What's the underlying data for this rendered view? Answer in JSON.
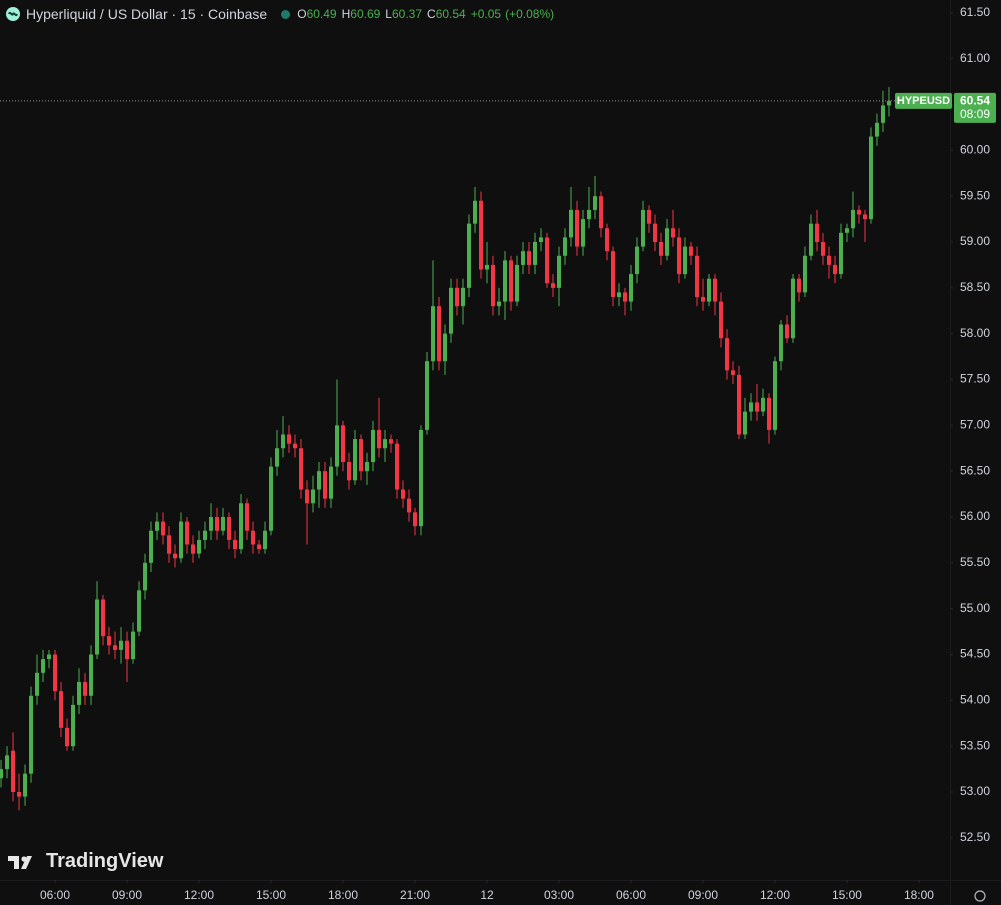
{
  "header": {
    "title": "Hyperliquid / US Dollar · 15 · Coinbase",
    "open_label": "O",
    "high_label": "H",
    "low_label": "L",
    "close_label": "C",
    "change": "+0.05",
    "change_pct": "(+0.08%)",
    "logo": "TradingView"
  },
  "chart_data": {
    "type": "candlestick",
    "symbol_label": "HYPEUSD",
    "countdown": "08:09",
    "up_color": "#4caf50",
    "down_color": "#f23645",
    "grid": false,
    "open": [
      53.15,
      53.25,
      53.45,
      53.0,
      52.95,
      53.2,
      54.05,
      54.3,
      54.45,
      54.5,
      54.1,
      53.7,
      53.5,
      53.95,
      54.2,
      54.05,
      54.5,
      55.1,
      54.7,
      54.6,
      54.55,
      54.65,
      54.45,
      54.75,
      55.2,
      55.5,
      55.85,
      55.95,
      55.8,
      55.6,
      55.55,
      55.95,
      55.7,
      55.6,
      55.75,
      55.85,
      56.0,
      55.85,
      56.0,
      55.75,
      55.65,
      56.15,
      55.85,
      55.7,
      55.65,
      55.85,
      56.55,
      56.75,
      56.9,
      56.8,
      56.75,
      56.3,
      56.15,
      56.3,
      56.5,
      56.2,
      56.55,
      57.0,
      56.6,
      56.4,
      56.85,
      56.5,
      56.6,
      56.95,
      56.75,
      56.85,
      56.8,
      56.3,
      56.2,
      56.05,
      55.9,
      56.95,
      57.7,
      58.3,
      57.7,
      58.0,
      58.5,
      58.3,
      58.5,
      59.2,
      59.45,
      58.7,
      58.75,
      58.3,
      58.35,
      58.8,
      58.35,
      58.75,
      58.9,
      58.75,
      59.0,
      59.05,
      58.55,
      58.5,
      58.85,
      59.05,
      59.35,
      58.95,
      59.25,
      59.35,
      59.5,
      59.15,
      58.9,
      58.4,
      58.45,
      58.35,
      58.65,
      58.95,
      59.35,
      59.2,
      59.0,
      58.85,
      59.15,
      59.05,
      58.65,
      58.95,
      58.85,
      58.4,
      58.35,
      58.6,
      58.35,
      57.95,
      57.6,
      57.55,
      56.9,
      57.15,
      57.25,
      57.15,
      57.3,
      56.95,
      57.7,
      58.1,
      57.95,
      58.6,
      58.45,
      58.85,
      59.2,
      59.0,
      58.85,
      58.75,
      58.65,
      59.1,
      59.15,
      59.35,
      59.3,
      59.25,
      60.15,
      60.3,
      60.49
    ],
    "high": [
      53.35,
      53.5,
      53.65,
      53.2,
      53.3,
      54.15,
      54.5,
      54.55,
      54.55,
      54.55,
      54.2,
      53.8,
      54.05,
      54.35,
      54.3,
      54.6,
      55.3,
      55.15,
      54.8,
      54.75,
      54.8,
      54.75,
      54.85,
      55.3,
      55.6,
      55.95,
      56.05,
      56.05,
      55.9,
      55.7,
      56.05,
      56.0,
      55.8,
      55.85,
      55.95,
      56.15,
      56.1,
      56.1,
      56.05,
      55.85,
      56.25,
      56.2,
      55.95,
      55.75,
      55.95,
      56.65,
      56.95,
      57.1,
      57.0,
      56.9,
      56.85,
      56.4,
      56.45,
      56.6,
      56.6,
      56.65,
      57.5,
      57.05,
      56.7,
      56.95,
      56.9,
      56.7,
      57.05,
      57.3,
      56.95,
      56.9,
      56.85,
      56.4,
      56.3,
      56.1,
      57.0,
      57.8,
      58.8,
      58.4,
      58.1,
      58.6,
      58.6,
      58.6,
      59.3,
      59.6,
      59.55,
      59.0,
      58.85,
      58.5,
      58.9,
      58.85,
      58.85,
      59.0,
      59.0,
      59.1,
      59.15,
      59.1,
      58.65,
      58.95,
      59.15,
      59.6,
      59.45,
      59.35,
      59.6,
      59.72,
      59.55,
      59.2,
      58.95,
      58.55,
      58.5,
      58.75,
      59.05,
      59.45,
      59.4,
      59.3,
      59.1,
      59.25,
      59.35,
      59.15,
      59.05,
      59.0,
      58.95,
      58.6,
      58.65,
      58.65,
      58.45,
      58.05,
      57.7,
      57.65,
      57.3,
      57.35,
      57.45,
      57.4,
      57.35,
      57.75,
      58.15,
      58.2,
      58.65,
      58.65,
      58.95,
      59.3,
      59.35,
      59.1,
      58.95,
      58.85,
      59.2,
      59.2,
      59.55,
      59.4,
      59.35,
      60.25,
      60.4,
      60.65,
      60.69
    ],
    "low": [
      53.05,
      53.15,
      52.9,
      52.8,
      52.85,
      53.1,
      53.95,
      54.2,
      54.35,
      54.0,
      53.6,
      53.45,
      53.45,
      53.85,
      53.95,
      53.95,
      54.45,
      54.6,
      54.5,
      54.45,
      54.4,
      54.2,
      54.4,
      54.7,
      55.1,
      55.4,
      55.75,
      55.7,
      55.5,
      55.45,
      55.5,
      55.6,
      55.5,
      55.55,
      55.65,
      55.75,
      55.75,
      55.8,
      55.65,
      55.55,
      55.6,
      55.75,
      55.6,
      55.6,
      55.6,
      55.8,
      56.45,
      56.65,
      56.7,
      56.65,
      56.2,
      55.7,
      56.05,
      56.1,
      56.1,
      56.1,
      56.45,
      56.5,
      56.3,
      56.35,
      56.4,
      56.35,
      56.5,
      56.65,
      56.6,
      56.7,
      56.2,
      56.1,
      55.95,
      55.8,
      55.8,
      56.9,
      57.6,
      57.6,
      57.55,
      57.9,
      58.2,
      58.1,
      58.4,
      59.1,
      58.6,
      58.55,
      58.2,
      58.2,
      58.15,
      58.25,
      58.3,
      58.65,
      58.65,
      58.65,
      58.9,
      58.5,
      58.4,
      58.3,
      58.75,
      58.95,
      58.85,
      58.85,
      59.15,
      59.25,
      59.05,
      58.8,
      58.3,
      58.3,
      58.2,
      58.25,
      58.55,
      58.9,
      59.1,
      58.9,
      58.75,
      58.8,
      58.95,
      58.55,
      58.6,
      58.75,
      58.3,
      58.25,
      58.3,
      58.2,
      57.85,
      57.5,
      57.45,
      56.85,
      56.85,
      57.05,
      57.05,
      57.1,
      56.8,
      56.9,
      57.6,
      57.9,
      57.9,
      58.35,
      58.4,
      58.8,
      58.9,
      58.75,
      58.6,
      58.55,
      58.6,
      59.0,
      59.05,
      59.2,
      59.0,
      59.2,
      60.05,
      60.2,
      60.37
    ],
    "close": [
      53.25,
      53.4,
      53.0,
      52.95,
      53.2,
      54.05,
      54.3,
      54.45,
      54.5,
      54.1,
      53.7,
      53.5,
      53.95,
      54.2,
      54.05,
      54.5,
      55.1,
      54.7,
      54.6,
      54.55,
      54.65,
      54.45,
      54.75,
      55.2,
      55.5,
      55.85,
      55.95,
      55.8,
      55.6,
      55.55,
      55.95,
      55.7,
      55.6,
      55.75,
      55.85,
      56.0,
      55.85,
      56.0,
      55.75,
      55.65,
      56.15,
      55.85,
      55.7,
      55.65,
      55.85,
      56.55,
      56.75,
      56.9,
      56.8,
      56.75,
      56.3,
      56.15,
      56.3,
      56.5,
      56.2,
      56.55,
      57.0,
      56.6,
      56.4,
      56.85,
      56.5,
      56.6,
      56.95,
      56.75,
      56.85,
      56.8,
      56.3,
      56.2,
      56.05,
      55.9,
      56.95,
      57.7,
      58.3,
      57.7,
      58.0,
      58.5,
      58.3,
      58.5,
      59.2,
      59.45,
      58.7,
      58.75,
      58.3,
      58.35,
      58.8,
      58.35,
      58.75,
      58.9,
      58.75,
      59.0,
      59.05,
      58.55,
      58.5,
      58.85,
      59.05,
      59.35,
      58.95,
      59.25,
      59.35,
      59.5,
      59.15,
      58.9,
      58.4,
      58.45,
      58.35,
      58.65,
      58.95,
      59.35,
      59.2,
      59.0,
      58.85,
      59.15,
      59.05,
      58.65,
      58.95,
      58.85,
      58.4,
      58.35,
      58.6,
      58.35,
      57.95,
      57.6,
      57.55,
      56.9,
      57.15,
      57.25,
      57.15,
      57.3,
      56.95,
      57.7,
      58.1,
      57.95,
      58.6,
      58.45,
      58.85,
      59.2,
      59.0,
      58.85,
      58.75,
      58.65,
      59.1,
      59.15,
      59.35,
      59.3,
      59.25,
      60.15,
      60.3,
      60.49,
      60.54
    ],
    "xlim": [
      -0.17,
      158.17
    ],
    "xticks": [
      {
        "value": 9,
        "label": "06:00"
      },
      {
        "value": 21,
        "label": "09:00"
      },
      {
        "value": 33,
        "label": "12:00"
      },
      {
        "value": 45,
        "label": "15:00"
      },
      {
        "value": 57,
        "label": "18:00"
      },
      {
        "value": 69,
        "label": "21:00"
      },
      {
        "value": 81,
        "label": "12"
      },
      {
        "value": 93,
        "label": "03:00"
      },
      {
        "value": 105,
        "label": "06:00"
      },
      {
        "value": 117,
        "label": "09:00"
      },
      {
        "value": 129,
        "label": "12:00"
      },
      {
        "value": 141,
        "label": "15:00"
      },
      {
        "value": 153,
        "label": "18:00"
      }
    ],
    "ylim": [
      52.04,
      61.64
    ],
    "yticks": [
      {
        "value": 52.5,
        "label": "52.50"
      },
      {
        "value": 53,
        "label": "53.00"
      },
      {
        "value": 53.5,
        "label": "53.50"
      },
      {
        "value": 54,
        "label": "54.00"
      },
      {
        "value": 54.5,
        "label": "54.50"
      },
      {
        "value": 55,
        "label": "55.00"
      },
      {
        "value": 55.5,
        "label": "55.50"
      },
      {
        "value": 56,
        "label": "56.00"
      },
      {
        "value": 56.5,
        "label": "56.50"
      },
      {
        "value": 57,
        "label": "57.00"
      },
      {
        "value": 57.5,
        "label": "57.50"
      },
      {
        "value": 58,
        "label": "58.00"
      },
      {
        "value": 58.5,
        "label": "58.50"
      },
      {
        "value": 59,
        "label": "59.00"
      },
      {
        "value": 59.5,
        "label": "59.50"
      },
      {
        "value": 60,
        "label": "60.00"
      },
      {
        "value": 60.5,
        "label": "60.50"
      },
      {
        "value": 61,
        "label": "61.00"
      },
      {
        "value": 61.5,
        "label": "61.50"
      }
    ]
  }
}
